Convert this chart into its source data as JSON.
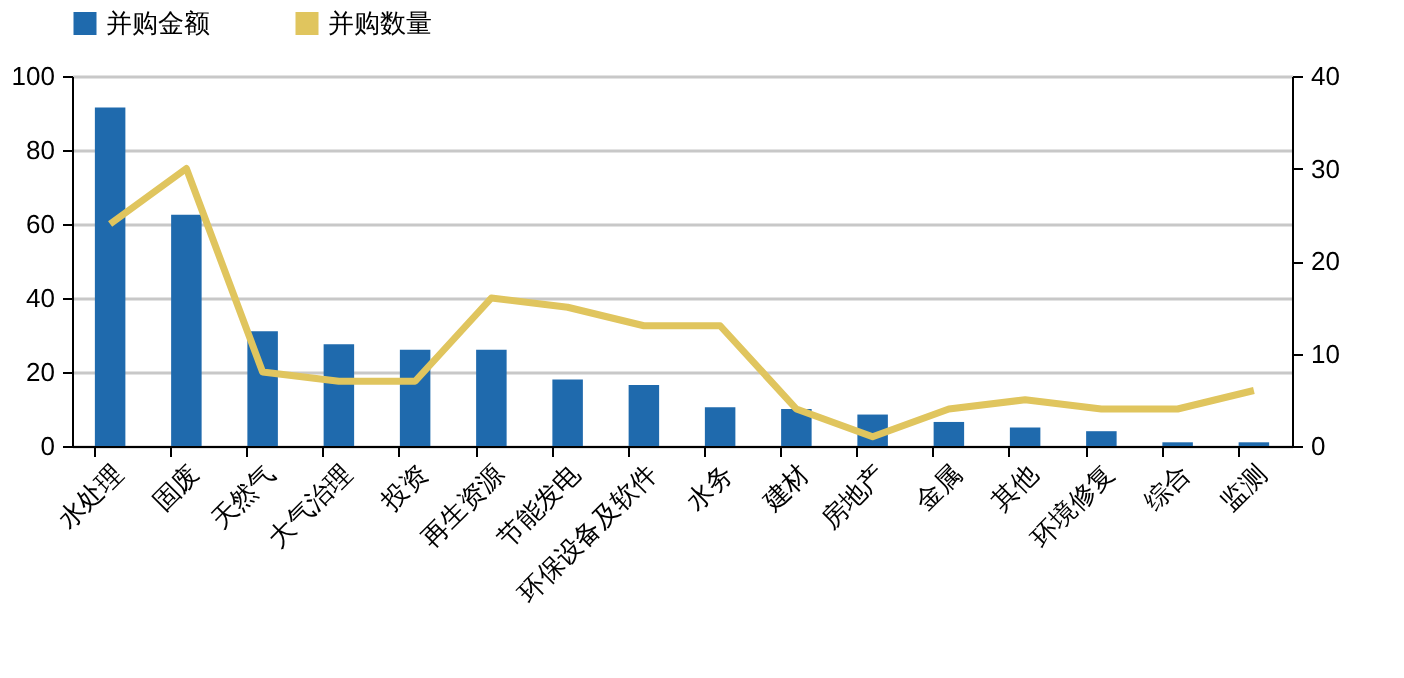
{
  "chart_data": {
    "type": "bar",
    "categories": [
      "水处理",
      "固废",
      "天然气",
      "大气治理",
      "投资",
      "再生资源",
      "节能发电",
      "环保设备及软件",
      "水务",
      "建材",
      "房地产",
      "金属",
      "其他",
      "环境修复",
      "综合",
      "监测"
    ],
    "series": [
      {
        "name": "并购金额",
        "color": "#1f6aad",
        "values": [
          91.5,
          62.5,
          31,
          27.5,
          26,
          26,
          18,
          16.5,
          10.5,
          10,
          8.5,
          6.5,
          5,
          4,
          1,
          1
        ]
      },
      {
        "name": "并购数量",
        "type": "line",
        "axis": "y2",
        "color": "#e0c55e",
        "values": [
          24,
          30,
          8,
          7,
          7,
          16,
          15,
          13,
          13,
          4,
          1,
          4,
          5,
          4,
          4,
          6
        ]
      }
    ],
    "ylim": [
      0,
      100
    ],
    "yticks": [
      0,
      20,
      40,
      60,
      80,
      100
    ],
    "y2lim": [
      0,
      40
    ],
    "y2ticks": [
      0,
      10,
      20,
      30,
      40
    ],
    "grid": "y",
    "legend": "top",
    "marker": "none"
  }
}
